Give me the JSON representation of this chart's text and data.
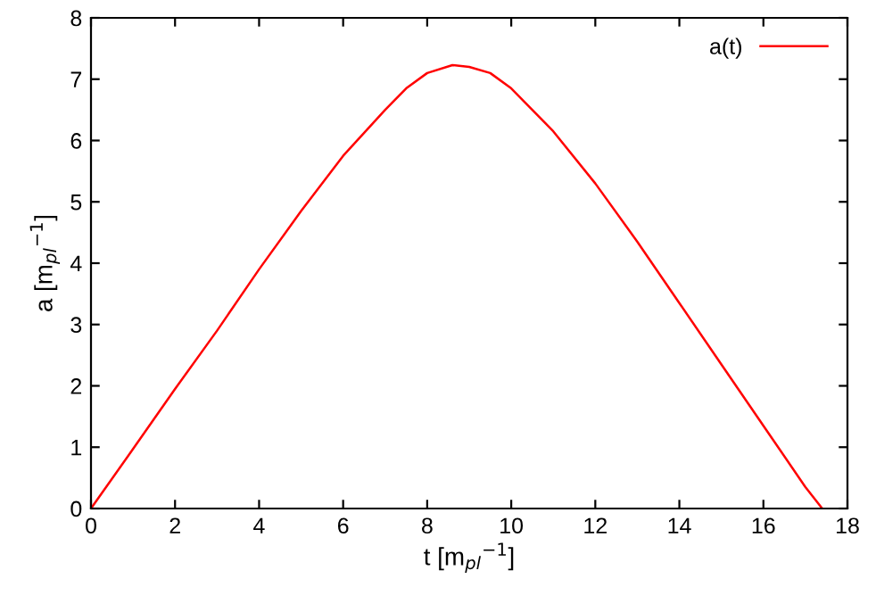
{
  "chart_data": {
    "type": "line",
    "xlabel": "t [m$_{pl}$$^{−1}$]",
    "ylabel": "a [m$_{pl}$$^{−1}$]",
    "series": [
      {
        "name": "a(t)",
        "color": "#ff0000",
        "x": [
          0,
          1,
          2,
          3,
          4,
          5,
          6,
          7,
          7.5,
          8,
          8.6,
          9,
          9.5,
          10,
          11,
          12,
          13,
          14,
          15,
          16,
          17,
          17.4
        ],
        "values": [
          0,
          0.97,
          1.95,
          2.9,
          3.9,
          4.85,
          5.75,
          6.5,
          6.85,
          7.1,
          7.23,
          7.2,
          7.1,
          6.85,
          6.15,
          5.3,
          4.35,
          3.35,
          2.35,
          1.35,
          0.35,
          0
        ]
      }
    ],
    "xlim": [
      0,
      18
    ],
    "ylim": [
      0,
      8
    ],
    "xticks": [
      0,
      2,
      4,
      6,
      8,
      10,
      12,
      14,
      16,
      18
    ],
    "yticks": [
      0,
      1,
      2,
      3,
      4,
      5,
      6,
      7,
      8
    ],
    "legend": "top right",
    "grid": false,
    "marker": "none",
    "line_style": "solid"
  }
}
